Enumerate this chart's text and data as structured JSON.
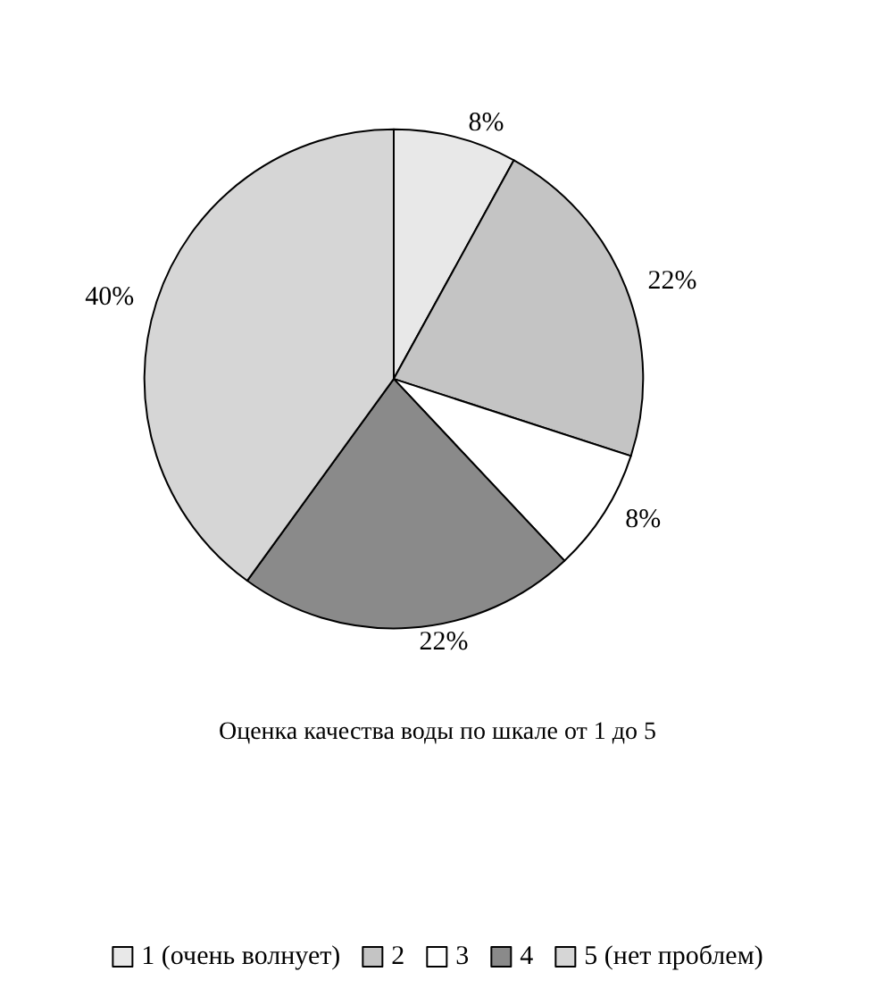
{
  "chart_data": {
    "type": "pie",
    "title": "Оценка качества воды по шкале от 1 до 5",
    "categories": [
      "1 (очень волнует)",
      "2",
      "3",
      "4",
      "5 (нет проблем)"
    ],
    "values": [
      8,
      22,
      8,
      22,
      40
    ],
    "colors": [
      "#e8e8e8",
      "#c4c4c4",
      "#ffffff",
      "#8a8a8a",
      "#d6d6d6"
    ],
    "value_labels": [
      "8%",
      "22%",
      "8%",
      "22%",
      "40%"
    ],
    "legend": "bottom"
  }
}
